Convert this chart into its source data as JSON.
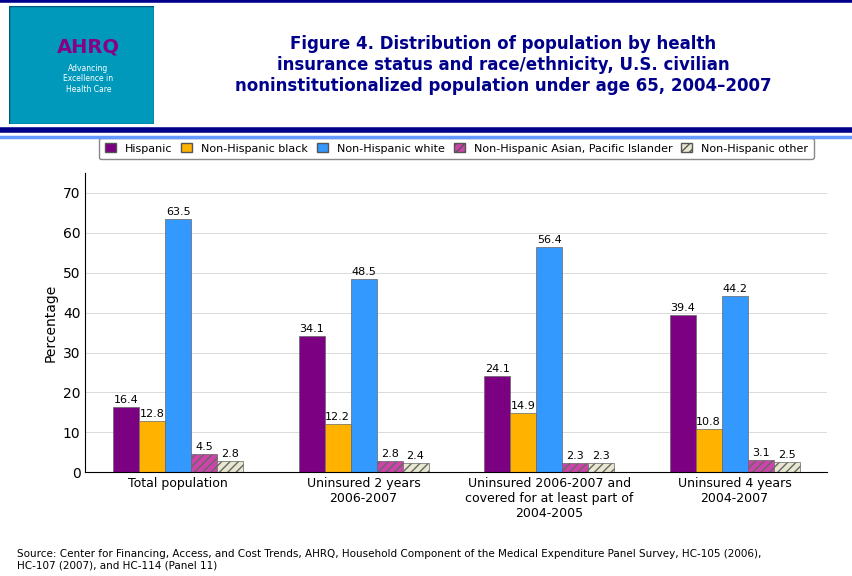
{
  "title": "Figure 4. Distribution of population by health\ninsurance status and race/ethnicity, U.S. civilian\nnoninstitutionalized population under age 65, 2004–2007",
  "ylabel": "Percentage",
  "categories": [
    "Total population",
    "Uninsured 2 years\n2006-2007",
    "Uninsured 2006-2007 and\ncovered for at least part of\n2004-2005",
    "Uninsured 4 years\n2004-2007"
  ],
  "series": [
    {
      "name": "Hispanic",
      "values": [
        16.4,
        34.1,
        24.1,
        39.4
      ],
      "color": "#7B0082",
      "hatch": ""
    },
    {
      "name": "Non-Hispanic black",
      "values": [
        12.8,
        12.2,
        14.9,
        10.8
      ],
      "color": "#FFB300",
      "hatch": ""
    },
    {
      "name": "Non-Hispanic white",
      "values": [
        63.5,
        48.5,
        56.4,
        44.2
      ],
      "color": "#3399FF",
      "hatch": ""
    },
    {
      "name": "Non-Hispanic Asian, Pacific Islander",
      "values": [
        4.5,
        2.8,
        2.3,
        3.1
      ],
      "color": "#CC44AA",
      "hatch": "////"
    },
    {
      "name": "Non-Hispanic other",
      "values": [
        2.8,
        2.4,
        2.3,
        2.5
      ],
      "color": "#E8E8D0",
      "hatch": "////"
    }
  ],
  "ylim": [
    0,
    75
  ],
  "yticks": [
    0,
    10,
    20,
    30,
    40,
    50,
    60,
    70
  ],
  "source_text": "Source: Center for Financing, Access, and Cost Trends, AHRQ, Household Component of the Medical Expenditure Panel Survey, HC-105 (2006),\nHC-107 (2007), and HC-114 (Panel 11)",
  "background_color": "#FFFFFF",
  "title_color": "#00008B",
  "bar_width": 0.14,
  "header_line1_color": "#00008B",
  "header_line2_color": "#6699FF",
  "label_fontsize": 8.0,
  "legend_fontsize": 8.0
}
